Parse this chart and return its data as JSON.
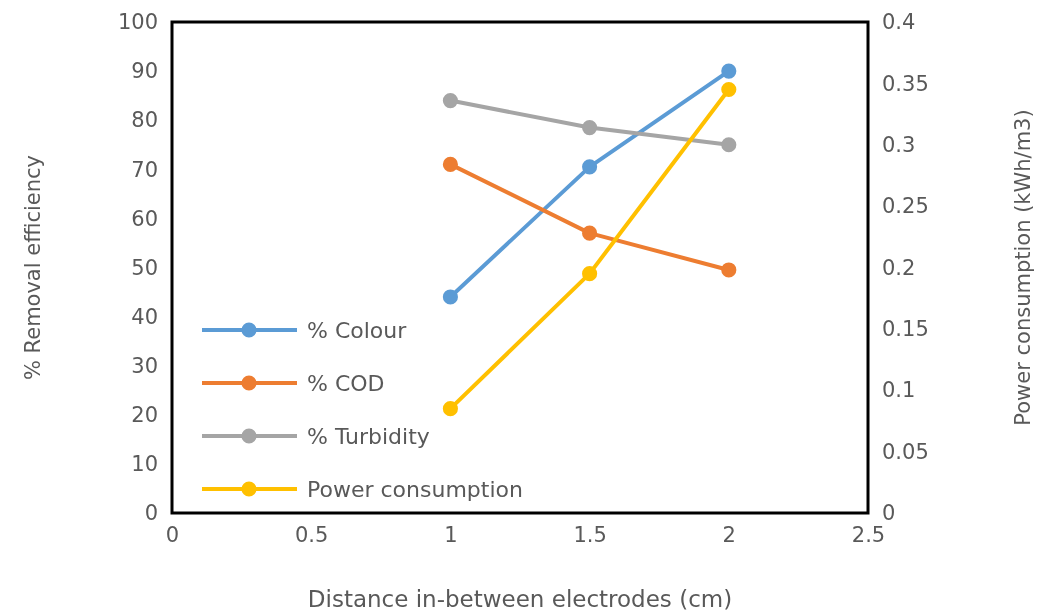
{
  "chart_data": {
    "type": "line",
    "xlabel": "Distance in-between electrodes (cm)",
    "ylabel": "% Removal efficiency",
    "y2label": "Power consumption (kWh/m3)",
    "x": [
      1,
      1.5,
      2
    ],
    "series": [
      {
        "name": "% Colour",
        "color": "#5b9bd5",
        "values": [
          44,
          70.5,
          90
        ]
      },
      {
        "name": "% COD",
        "color": "#ed7d31",
        "values": [
          71,
          57,
          49.5
        ]
      },
      {
        "name": "% Turbidity",
        "color": "#a5a5a5",
        "values": [
          84,
          78.5,
          75
        ]
      },
      {
        "name": "Power consumption",
        "color": "#ffc000",
        "values": [
          0.085,
          0.195,
          0.345
        ],
        "axis": "y2"
      }
    ],
    "xlim": [
      0,
      2.5
    ],
    "xticks": [
      0,
      0.5,
      1,
      1.5,
      2,
      2.5
    ],
    "ylim": [
      0,
      100
    ],
    "yticks": [
      0,
      10,
      20,
      30,
      40,
      50,
      60,
      70,
      80,
      90,
      100
    ],
    "y2lim": [
      0,
      0.4
    ],
    "y2ticks": [
      0,
      0.05,
      0.1,
      0.15,
      0.2,
      0.25,
      0.3,
      0.35,
      0.4
    ],
    "grid": false,
    "legend": "bottom left",
    "marker": "circle",
    "line_style": "solid"
  }
}
